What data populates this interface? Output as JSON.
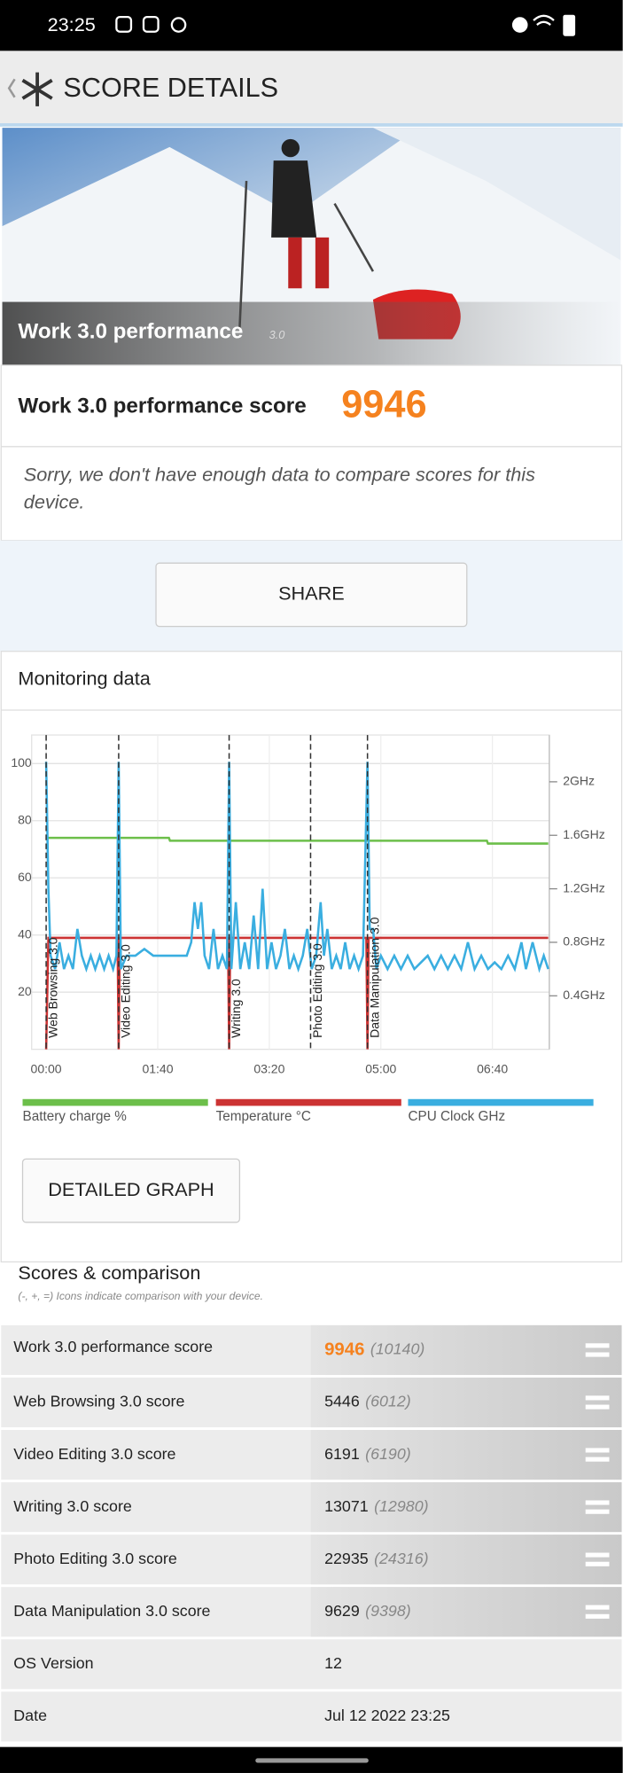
{
  "status_bar": {
    "time": "23:25"
  },
  "header": {
    "title": "SCORE DETAILS"
  },
  "hero": {
    "title": "Work 3.0 performance",
    "version": "3.0"
  },
  "score": {
    "label": "Work 3.0 performance score",
    "value": "9946"
  },
  "message": {
    "line1": "Sorry, we don't have enough data to compare scores for this",
    "line2": "device."
  },
  "share_button": "SHARE",
  "monitoring": {
    "title": "Monitoring data",
    "detail_button": "DETAILED GRAPH"
  },
  "chart_data": {
    "type": "line",
    "xlim": [
      -13,
      451
    ],
    "ylim": [
      0,
      110
    ],
    "y2lim": [
      0,
      2.35
    ],
    "xticks": [
      {
        "value": 0,
        "label": "00:00"
      },
      {
        "value": 100,
        "label": "01:40"
      },
      {
        "value": 200,
        "label": "03:20"
      },
      {
        "value": 300,
        "label": "05:00"
      },
      {
        "value": 400,
        "label": "06:40"
      }
    ],
    "yticks": [
      20,
      40,
      60,
      80,
      100
    ],
    "y2ticks": [
      {
        "value": 0.4,
        "label": "0.4GHz"
      },
      {
        "value": 0.8,
        "label": "0.8GHz"
      },
      {
        "value": 1.2,
        "label": "1.2GHz"
      },
      {
        "value": 1.6,
        "label": "1.6GHz"
      },
      {
        "value": 2,
        "label": "2GHz"
      }
    ],
    "grid": true,
    "markers": [
      {
        "x": 0,
        "label": "Web Browsing 3.0"
      },
      {
        "x": 65,
        "label": "Video Editing 3.0"
      },
      {
        "x": 164,
        "label": "Writing 3.0"
      },
      {
        "x": 237,
        "label": "Photo Editing 3.0"
      },
      {
        "x": 288,
        "label": "Data Manipulation 3.0"
      }
    ],
    "series": [
      {
        "name": "Battery charge %",
        "color": "#6cbf4a",
        "axis": "y",
        "x": [
          0,
          110,
          111,
          395,
          396,
          450
        ],
        "values": [
          74,
          74,
          73,
          73,
          72,
          72
        ]
      },
      {
        "name": "Temperature °C",
        "color": "#cc3333",
        "axis": "y",
        "x": [
          0,
          2,
          64,
          65,
          66,
          163,
          164,
          165,
          287,
          288,
          289,
          450
        ],
        "values": [
          0,
          39,
          39,
          0,
          39,
          39,
          0,
          39,
          39,
          0,
          39,
          39
        ]
      },
      {
        "name": "CPU Clock GHz",
        "color": "#3aaee0",
        "axis": "y2",
        "x": [
          0,
          2,
          4,
          8,
          12,
          16,
          20,
          24,
          28,
          32,
          36,
          40,
          44,
          48,
          52,
          56,
          60,
          63,
          65,
          67,
          72,
          80,
          88,
          96,
          104,
          112,
          120,
          126,
          130,
          133,
          136,
          139,
          142,
          146,
          150,
          154,
          158,
          162,
          164,
          166,
          170,
          174,
          178,
          182,
          186,
          190,
          194,
          198,
          202,
          206,
          210,
          214,
          218,
          222,
          226,
          230,
          234,
          238,
          242,
          246,
          249,
          252,
          256,
          260,
          264,
          268,
          272,
          276,
          280,
          284,
          288,
          290,
          293,
          296,
          300,
          306,
          312,
          318,
          324,
          330,
          336,
          342,
          348,
          354,
          360,
          366,
          372,
          378,
          384,
          390,
          396,
          402,
          408,
          414,
          420,
          426,
          430,
          436,
          442,
          446,
          450
        ],
        "values": [
          2.15,
          1.2,
          0.7,
          0.6,
          0.8,
          0.6,
          0.7,
          0.6,
          0.9,
          0.7,
          0.6,
          0.7,
          0.6,
          0.7,
          0.6,
          0.7,
          0.6,
          0.7,
          2.15,
          0.6,
          0.7,
          0.7,
          0.75,
          0.7,
          0.7,
          0.7,
          0.7,
          0.7,
          0.8,
          1.1,
          0.9,
          1.1,
          0.7,
          0.6,
          0.9,
          0.6,
          0.7,
          0.6,
          2.15,
          0.6,
          1.1,
          0.6,
          0.8,
          0.6,
          1.0,
          0.6,
          1.2,
          0.6,
          0.8,
          0.6,
          0.7,
          0.9,
          0.6,
          0.7,
          0.6,
          0.7,
          0.9,
          0.6,
          0.7,
          1.1,
          0.7,
          0.9,
          0.6,
          0.7,
          0.6,
          0.8,
          0.6,
          0.7,
          0.6,
          0.7,
          2.15,
          0.9,
          0.9,
          0.6,
          0.7,
          0.6,
          0.7,
          0.6,
          0.7,
          0.6,
          0.65,
          0.7,
          0.6,
          0.7,
          0.6,
          0.7,
          0.6,
          0.8,
          0.6,
          0.7,
          0.6,
          0.65,
          0.6,
          0.7,
          0.6,
          0.8,
          0.6,
          0.8,
          0.6,
          0.7,
          0.6
        ]
      }
    ]
  },
  "scores": {
    "title": "Scores & comparison",
    "subtitle": "(-, +, =) Icons indicate comparison with your device.",
    "rows": [
      {
        "label": "Work 3.0 performance score",
        "score": "9946",
        "comparison": "(10140)"
      },
      {
        "label": "Web Browsing 3.0 score",
        "score": "5446",
        "comparison": "(6012)"
      },
      {
        "label": "Video Editing 3.0 score",
        "score": "6191",
        "comparison": "(6190)"
      },
      {
        "label": "Writing 3.0 score",
        "score": "13071",
        "comparison": "(12980)"
      },
      {
        "label": "Photo Editing 3.0 score",
        "score": "22935",
        "comparison": "(24316)"
      },
      {
        "label": "Data Manipulation 3.0 score",
        "score": "9629",
        "comparison": "(9398)"
      }
    ],
    "info": [
      {
        "label": "OS Version",
        "value": "12"
      },
      {
        "label": "Date",
        "value": "Jul 12 2022 23:25"
      }
    ]
  }
}
